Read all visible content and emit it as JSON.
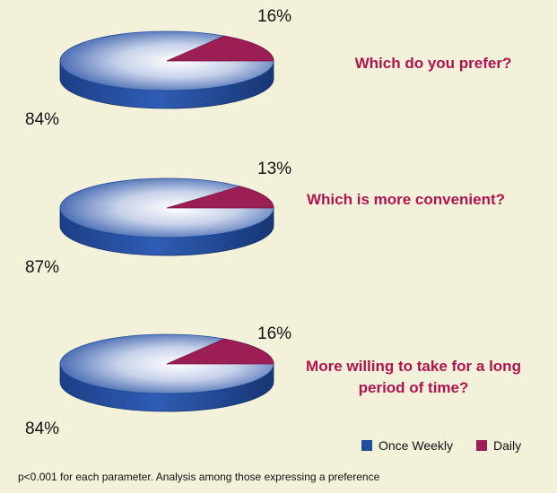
{
  "colors": {
    "once_weekly": "#1f4f9c",
    "daily": "#9b1f55",
    "question_text": "#b0144e",
    "background": "#f4f1db"
  },
  "chart_data": [
    {
      "type": "pie",
      "title": "Which do you prefer?",
      "slices": [
        {
          "label": "Once Weekly",
          "value": 84,
          "display": "84%"
        },
        {
          "label": "Daily",
          "value": 16,
          "display": "16%"
        }
      ]
    },
    {
      "type": "pie",
      "title": "Which is more convenient?",
      "slices": [
        {
          "label": "Once Weekly",
          "value": 87,
          "display": "87%"
        },
        {
          "label": "Daily",
          "value": 13,
          "display": "13%"
        }
      ]
    },
    {
      "type": "pie",
      "title": "More willing to take for a long period of time?",
      "slices": [
        {
          "label": "Once Weekly",
          "value": 84,
          "display": "84%"
        },
        {
          "label": "Daily",
          "value": 16,
          "display": "16%"
        }
      ]
    }
  ],
  "legend": {
    "placement": "bottom-right",
    "items": [
      "Once Weekly",
      "Daily"
    ]
  },
  "footnote": "p<0.001 for each parameter.   Analysis among those expressing a preference"
}
